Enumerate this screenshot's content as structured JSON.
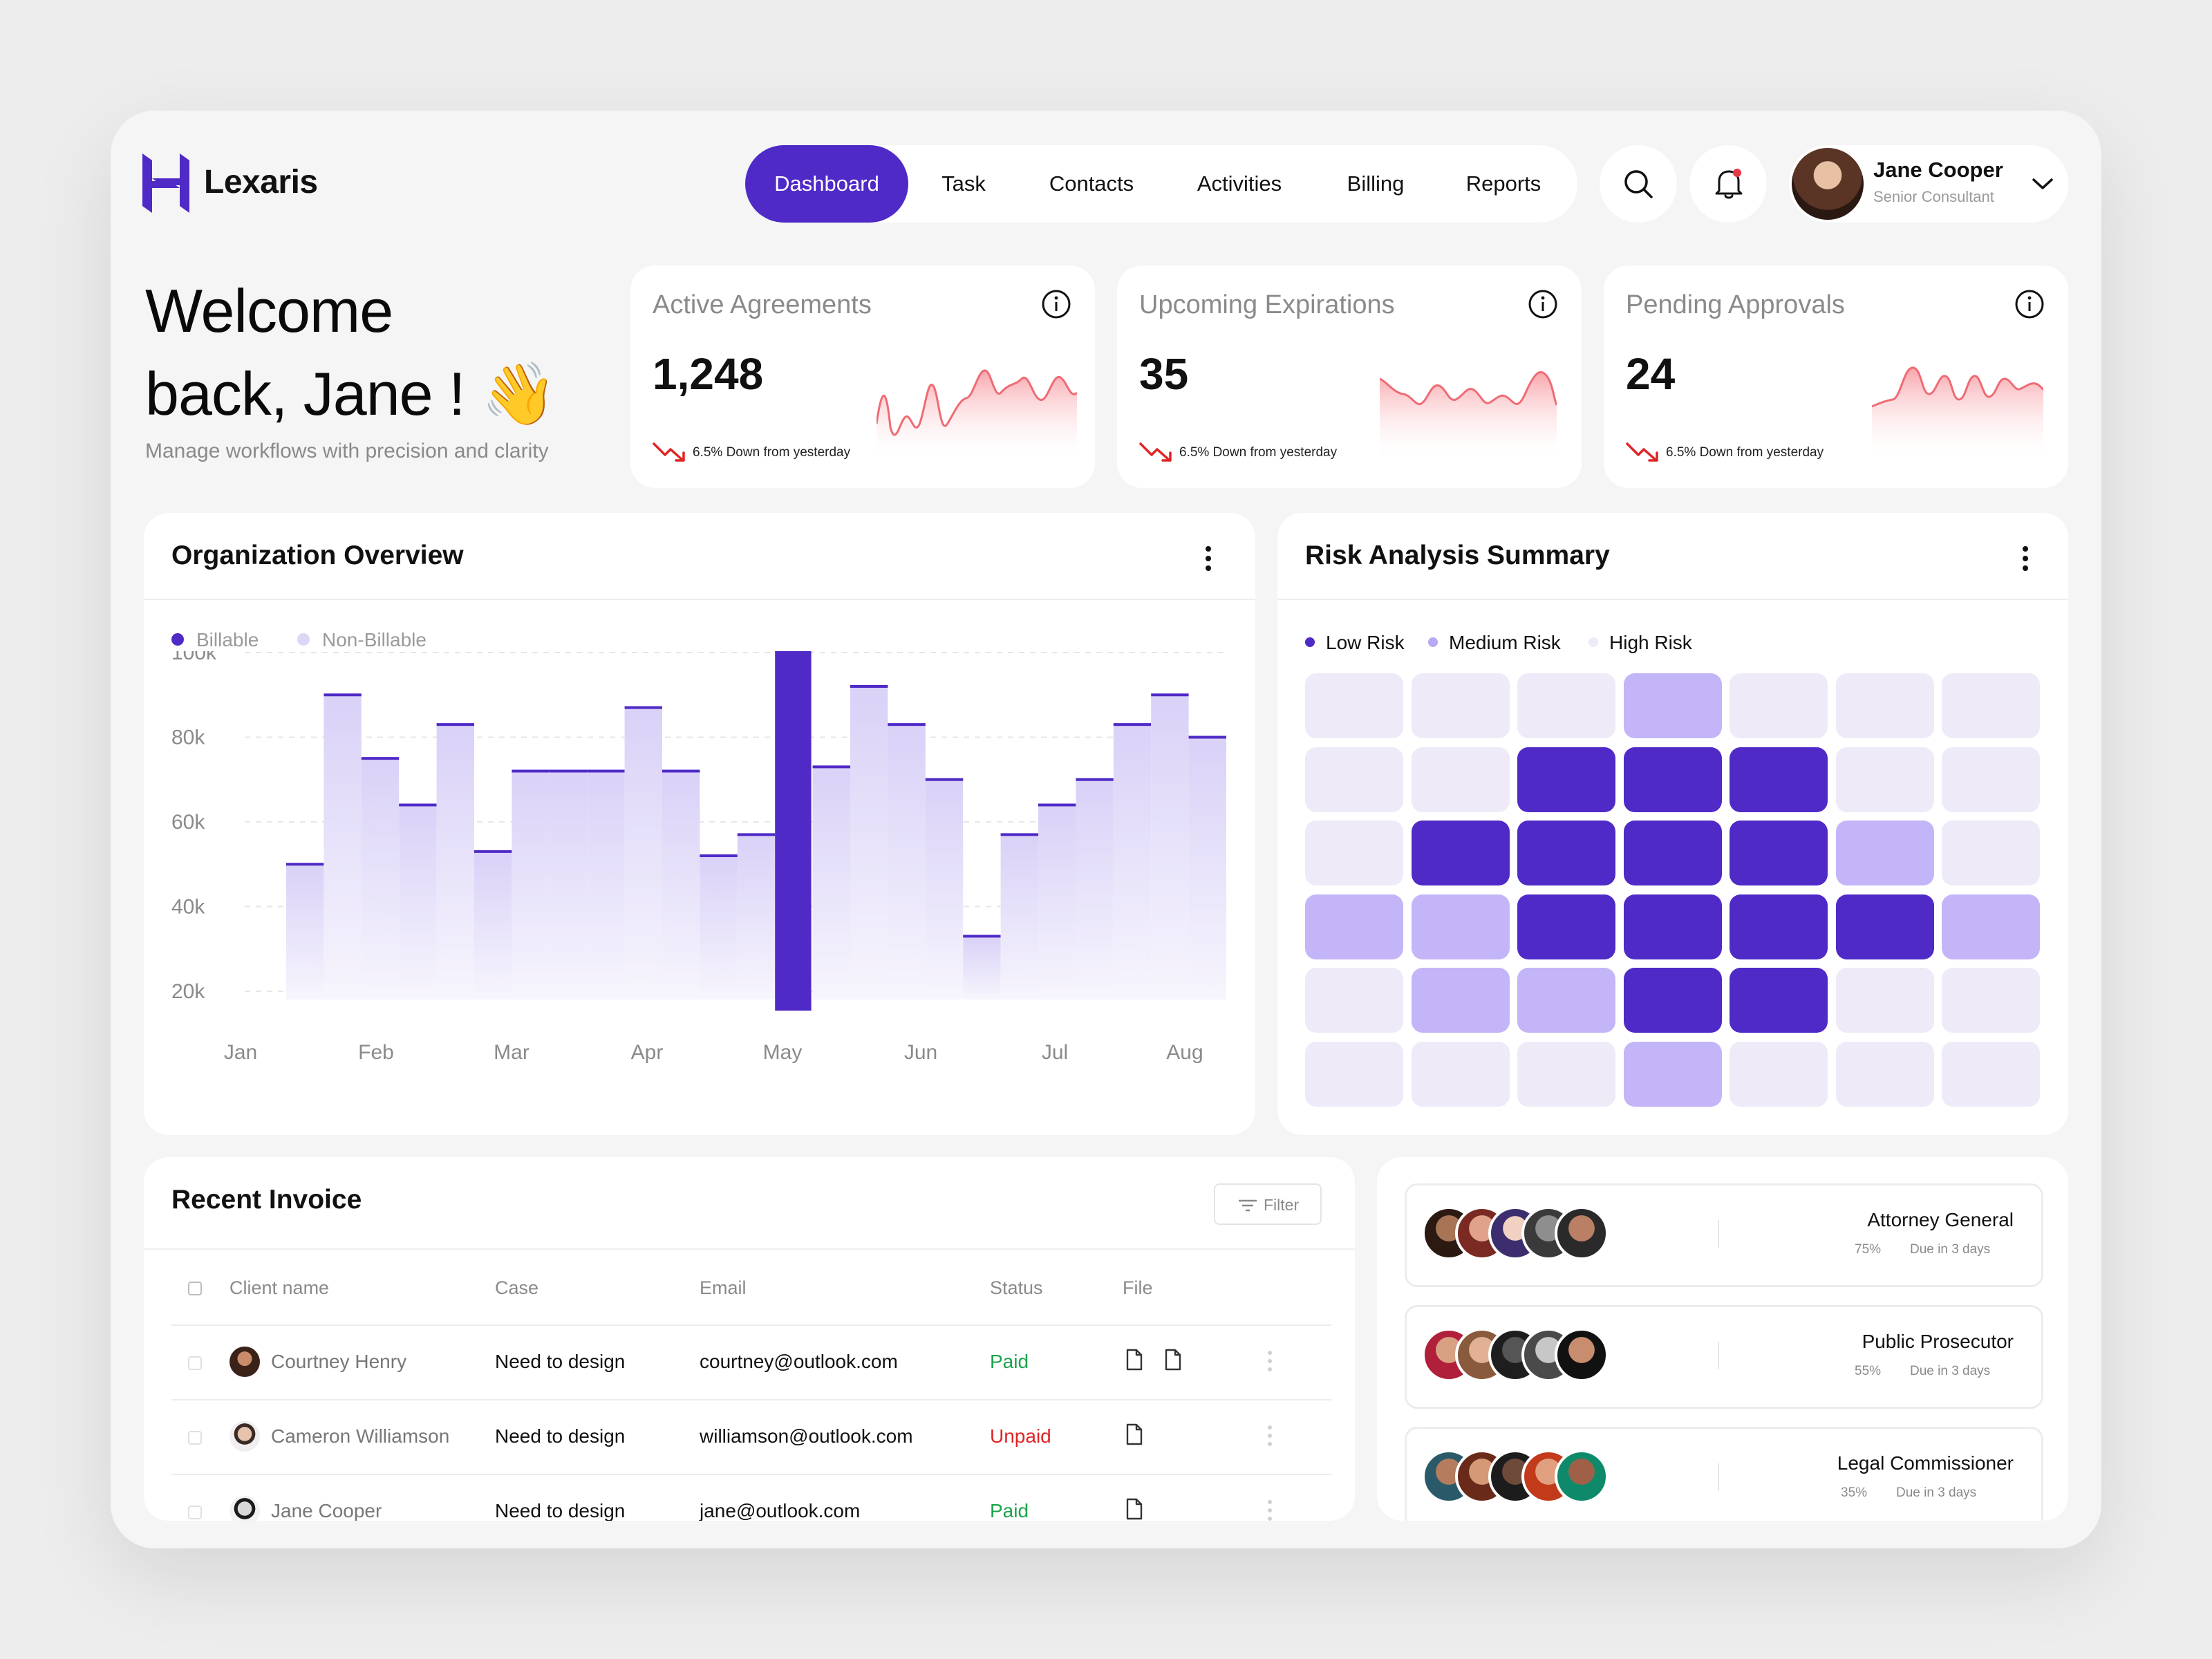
{
  "app": {
    "name": "Lexaris"
  },
  "nav": {
    "items": [
      {
        "label": "Dashboard",
        "active": true
      },
      {
        "label": "Task"
      },
      {
        "label": "Contacts"
      },
      {
        "label": "Activities"
      },
      {
        "label": "Billing"
      },
      {
        "label": "Reports"
      }
    ]
  },
  "profile": {
    "name": "Jane Cooper",
    "role": "Senior Consultant"
  },
  "welcome": {
    "line1": "Welcome",
    "line2": "back, Jane ! 👋",
    "subtitle": "Manage workflows with precision and clarity"
  },
  "stats": [
    {
      "title": "Active Agreements",
      "value": "1,248",
      "change": "6.5% Down from yesterday"
    },
    {
      "title": "Upcoming Expirations",
      "value": "35",
      "change": "6.5% Down from yesterday"
    },
    {
      "title": "Pending Approvals",
      "value": "24",
      "change": "6.5% Down from yesterday"
    }
  ],
  "org_overview": {
    "title": "Organization Overview",
    "legend": [
      {
        "label": "Billable",
        "color": "#4f2ac7"
      },
      {
        "label": "Non-Billable",
        "color": "#ddd6f7"
      }
    ]
  },
  "chart_data": {
    "type": "bar",
    "title": "Organization Overview",
    "xlabel": "",
    "ylabel": "",
    "ylim": [
      15000,
      100000
    ],
    "y_ticks": [
      "100k",
      "80k",
      "60k",
      "40k",
      "20k"
    ],
    "y_tick_values": [
      100000,
      80000,
      60000,
      40000,
      20000
    ],
    "x_ticks": [
      "Jan",
      "Feb",
      "Mar",
      "Apr",
      "May",
      "Jun",
      "Jul",
      "Aug"
    ],
    "grid": true,
    "legend_position": "top-left",
    "values": [
      50000,
      90000,
      75000,
      64000,
      83000,
      53000,
      72000,
      72000,
      72000,
      87000,
      72000,
      52000,
      57000,
      100000,
      73000,
      92000,
      83000,
      70000,
      33000,
      57000,
      64000,
      70000,
      83000,
      90000,
      80000
    ],
    "highlight_index": 13,
    "colors": {
      "bar": "#ddd6f7",
      "highlight": "#4f2ac7",
      "cap": "#4f2ac7"
    }
  },
  "risk": {
    "title": "Risk Analysis Summary",
    "legend": [
      {
        "label": "Low Risk",
        "color": "#4f2ac7"
      },
      {
        "label": "Medium Risk",
        "color": "#b9a8f5"
      },
      {
        "label": "High Risk",
        "color": "#eeeaf8"
      }
    ],
    "grid": [
      [
        0,
        0,
        0,
        1,
        0,
        0,
        0
      ],
      [
        0,
        0,
        2,
        2,
        2,
        0,
        0
      ],
      [
        0,
        2,
        2,
        2,
        2,
        1,
        0
      ],
      [
        1,
        1,
        2,
        2,
        2,
        2,
        1
      ],
      [
        0,
        1,
        1,
        2,
        2,
        0,
        0
      ],
      [
        0,
        0,
        0,
        1,
        0,
        0,
        0
      ]
    ],
    "colors": [
      "#eeeaf8",
      "#c4b5f8",
      "#4f2ac7"
    ]
  },
  "invoice": {
    "title": "Recent Invoice",
    "filter_label": "Filter",
    "columns": [
      "Client name",
      "Case",
      "Email",
      "Status",
      "File"
    ],
    "rows": [
      {
        "name": "Courtney Henry",
        "case": "Need to design",
        "email": "courtney@outlook.com",
        "status": "Paid",
        "status_color": "#1aa34a",
        "files": 2
      },
      {
        "name": "Cameron Williamson",
        "case": "Need to design",
        "email": "williamson@outlook.com",
        "status": "Unpaid",
        "status_color": "#e02424",
        "files": 1
      },
      {
        "name": "Jane Cooper",
        "case": "Need to design",
        "email": "jane@outlook.com",
        "status": "Paid",
        "status_color": "#1aa34a",
        "files": 1
      }
    ]
  },
  "roles": [
    {
      "title": "Attorney General",
      "percent": "75%",
      "due": "Due in 3 days"
    },
    {
      "title": "Public Prosecutor",
      "percent": "55%",
      "due": "Due in 3 days"
    },
    {
      "title": "Legal Commissioner",
      "percent": "35%",
      "due": "Due in 3 days"
    }
  ]
}
